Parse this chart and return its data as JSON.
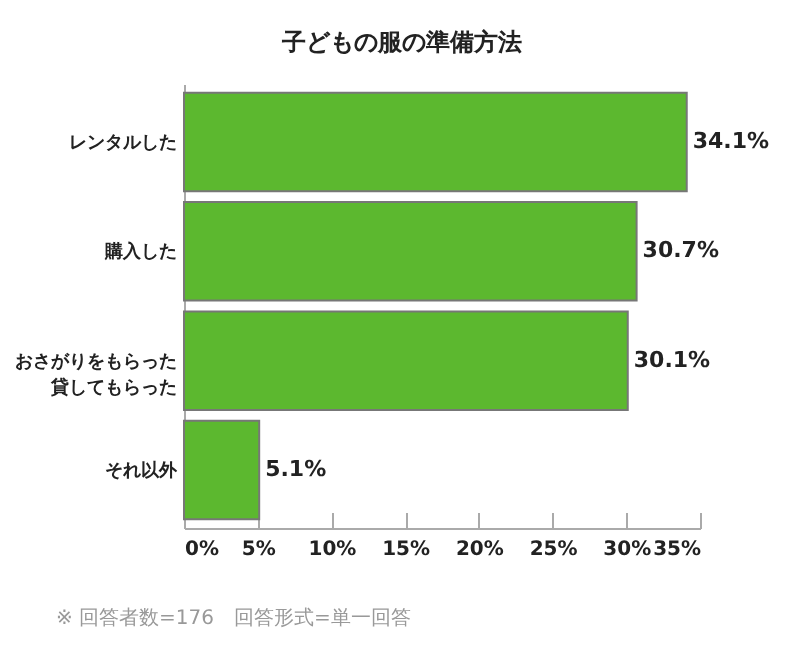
{
  "chart_data": {
    "type": "bar",
    "orientation": "horizontal",
    "title": "子どもの服の準備方法",
    "categories": [
      "レンタルした",
      "購入した",
      "おさがりをもらった貸してもらった",
      "それ以外"
    ],
    "values": [
      34.1,
      30.7,
      30.1,
      5.1
    ],
    "value_labels": [
      "34.1%",
      "30.7%",
      "30.1%",
      "5.1%"
    ],
    "color": "#5cb82f",
    "xlim": [
      0,
      35
    ],
    "xticks": [
      {
        "value": 0,
        "label": "0%"
      },
      {
        "value": 5,
        "label": "5%"
      },
      {
        "value": 10,
        "label": "10%"
      },
      {
        "value": 15,
        "label": "15%"
      },
      {
        "value": 20,
        "label": "20%"
      },
      {
        "value": 25,
        "label": "25%"
      },
      {
        "value": 30,
        "label": "30%"
      },
      {
        "value": 35,
        "label": "35%"
      }
    ],
    "annotations": [
      "※ 回答者数=176　回答形式=単一回答"
    ]
  }
}
